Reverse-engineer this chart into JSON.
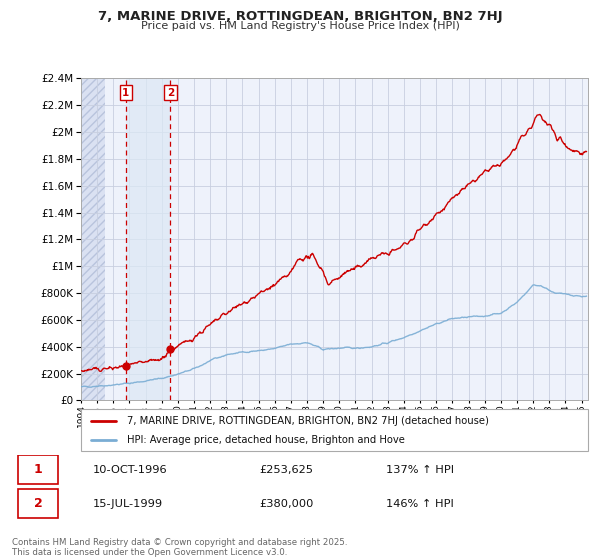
{
  "title": "7, MARINE DRIVE, ROTTINGDEAN, BRIGHTON, BN2 7HJ",
  "subtitle": "Price paid vs. HM Land Registry's House Price Index (HPI)",
  "ylim": [
    0,
    2400000
  ],
  "yticks": [
    0,
    200000,
    400000,
    600000,
    800000,
    1000000,
    1200000,
    1400000,
    1600000,
    1800000,
    2000000,
    2200000,
    2400000
  ],
  "sale1_date": 1996.78,
  "sale1_price": 253625,
  "sale1_label": "1",
  "sale2_date": 1999.54,
  "sale2_price": 380000,
  "sale2_label": "2",
  "hpi_color": "#7aadd4",
  "price_color": "#cc0000",
  "legend_property": "7, MARINE DRIVE, ROTTINGDEAN, BRIGHTON, BN2 7HJ (detached house)",
  "legend_hpi": "HPI: Average price, detached house, Brighton and Hove",
  "table_row1": [
    "1",
    "10-OCT-1996",
    "£253,625",
    "137% ↑ HPI"
  ],
  "table_row2": [
    "2",
    "15-JUL-1999",
    "£380,000",
    "146% ↑ HPI"
  ],
  "footnote": "Contains HM Land Registry data © Crown copyright and database right 2025.\nThis data is licensed under the Open Government Licence v3.0.",
  "bg_color": "#ffffff",
  "plot_bg_color": "#eef2fb",
  "grid_color": "#c8cfe0",
  "hatch_bg": "#d8e0ef",
  "span_bg": "#dce8f5"
}
